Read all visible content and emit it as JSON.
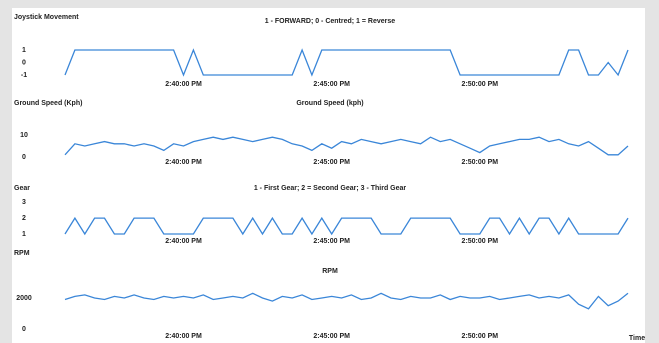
{
  "chart_data": [
    {
      "type": "line",
      "title": "1 - FORWARD; 0 - Centred; 1 = Reverse",
      "y_label": "Joystick Movement",
      "x": [
        52560,
        52580,
        52600,
        52620,
        52640,
        52660,
        52680,
        52700,
        52720,
        52740,
        52760,
        52780,
        52800,
        52820,
        52840,
        52860,
        52880,
        52900,
        52920,
        52940,
        52960,
        52980,
        53000,
        53020,
        53040,
        53060,
        53080,
        53100,
        53120,
        53140,
        53160,
        53180,
        53200,
        53220,
        53240,
        53260,
        53280,
        53300,
        53320,
        53340,
        53360,
        53380,
        53400,
        53420,
        53440,
        53460,
        53480,
        53500,
        53520,
        53540,
        53560,
        53580,
        53600,
        53620,
        53640,
        53660,
        53680,
        53700
      ],
      "series": [
        {
          "color": "#3a86d8",
          "values": [
            -1,
            1,
            1,
            1,
            1,
            1,
            1,
            1,
            1,
            1,
            1,
            1,
            -1,
            1,
            -1,
            -1,
            -1,
            -1,
            -1,
            -1,
            -1,
            -1,
            -1,
            -1,
            1,
            -1,
            1,
            1,
            1,
            1,
            1,
            1,
            1,
            1,
            1,
            1,
            1,
            1,
            1,
            1,
            -1,
            -1,
            -1,
            -1,
            -1,
            -1,
            -1,
            -1,
            -1,
            -1,
            -1,
            1,
            1,
            -1,
            -1,
            0,
            -1,
            1
          ]
        }
      ],
      "xlim": [
        52560,
        53700
      ],
      "ylim": [
        -1.4,
        1.4
      ],
      "yticks": [
        1,
        0,
        -1
      ],
      "xticks": [
        {
          "value": 52800,
          "label": "2:40:00 PM"
        },
        {
          "value": 53100,
          "label": "2:45:00 PM"
        },
        {
          "value": 53400,
          "label": "2:50:00 PM"
        }
      ]
    },
    {
      "type": "line",
      "title": "Ground Speed (kph)",
      "y_label": "Ground Speed (Kph)",
      "x": [
        52560,
        52580,
        52600,
        52620,
        52640,
        52660,
        52680,
        52700,
        52720,
        52740,
        52760,
        52780,
        52800,
        52820,
        52840,
        52860,
        52880,
        52900,
        52920,
        52940,
        52960,
        52980,
        53000,
        53020,
        53040,
        53060,
        53080,
        53100,
        53120,
        53140,
        53160,
        53180,
        53200,
        53220,
        53240,
        53260,
        53280,
        53300,
        53320,
        53340,
        53360,
        53380,
        53400,
        53420,
        53440,
        53460,
        53480,
        53500,
        53520,
        53540,
        53560,
        53580,
        53600,
        53620,
        53640,
        53660,
        53680,
        53700
      ],
      "series": [
        {
          "color": "#3a86d8",
          "values": [
            1,
            6,
            5,
            6,
            7,
            6,
            6,
            5,
            6,
            5,
            3,
            6,
            5,
            7,
            8,
            9,
            8,
            9,
            8,
            7,
            8,
            9,
            8,
            6,
            5,
            3,
            6,
            4,
            7,
            6,
            8,
            7,
            6,
            7,
            8,
            7,
            6,
            9,
            7,
            8,
            6,
            4,
            2,
            5,
            6,
            7,
            8,
            8,
            9,
            7,
            8,
            6,
            5,
            7,
            4,
            1,
            1,
            5
          ]
        }
      ],
      "xlim": [
        52560,
        53700
      ],
      "ylim": [
        -1,
        12
      ],
      "yticks": [
        10,
        0
      ],
      "xticks": [
        {
          "value": 52800,
          "label": "2:40:00 PM"
        },
        {
          "value": 53100,
          "label": "2:45:00 PM"
        },
        {
          "value": 53400,
          "label": "2:50:00 PM"
        }
      ]
    },
    {
      "type": "line",
      "title": "1 - First Gear; 2 = Second Gear; 3 - Third Gear",
      "y_label": "Gear",
      "x": [
        52560,
        52580,
        52600,
        52620,
        52640,
        52660,
        52680,
        52700,
        52720,
        52740,
        52760,
        52780,
        52800,
        52820,
        52840,
        52860,
        52880,
        52900,
        52920,
        52940,
        52960,
        52980,
        53000,
        53020,
        53040,
        53060,
        53080,
        53100,
        53120,
        53140,
        53160,
        53180,
        53200,
        53220,
        53240,
        53260,
        53280,
        53300,
        53320,
        53340,
        53360,
        53380,
        53400,
        53420,
        53440,
        53460,
        53480,
        53500,
        53520,
        53540,
        53560,
        53580,
        53600,
        53620,
        53640,
        53660,
        53680,
        53700
      ],
      "series": [
        {
          "color": "#3a86d8",
          "values": [
            1,
            2,
            1,
            2,
            2,
            1,
            1,
            2,
            2,
            2,
            1,
            1,
            1,
            1,
            2,
            2,
            2,
            2,
            1,
            2,
            1,
            2,
            1,
            1,
            2,
            1,
            2,
            1,
            2,
            2,
            2,
            2,
            1,
            1,
            1,
            2,
            2,
            2,
            2,
            2,
            1,
            1,
            1,
            2,
            2,
            1,
            2,
            1,
            2,
            2,
            1,
            2,
            1,
            1,
            1,
            1,
            1,
            2
          ]
        }
      ],
      "xlim": [
        52560,
        53700
      ],
      "ylim": [
        0.8,
        3.2
      ],
      "yticks": [
        3,
        2,
        1
      ],
      "xticks": [
        {
          "value": 52800,
          "label": "2:40:00 PM"
        },
        {
          "value": 53100,
          "label": "2:45:00 PM"
        },
        {
          "value": 53400,
          "label": "2:50:00 PM"
        }
      ]
    },
    {
      "type": "line",
      "title": "RPM",
      "y_label": "RPM",
      "x_label": "Time",
      "x": [
        52560,
        52580,
        52600,
        52620,
        52640,
        52660,
        52680,
        52700,
        52720,
        52740,
        52760,
        52780,
        52800,
        52820,
        52840,
        52860,
        52880,
        52900,
        52920,
        52940,
        52960,
        52980,
        53000,
        53020,
        53040,
        53060,
        53080,
        53100,
        53120,
        53140,
        53160,
        53180,
        53200,
        53220,
        53240,
        53260,
        53280,
        53300,
        53320,
        53340,
        53360,
        53380,
        53400,
        53420,
        53440,
        53460,
        53480,
        53500,
        53520,
        53540,
        53560,
        53580,
        53600,
        53620,
        53640,
        53660,
        53680,
        53700
      ],
      "series": [
        {
          "color": "#3a86d8",
          "values": [
            1900,
            2100,
            2200,
            2000,
            1900,
            2100,
            2000,
            2200,
            2000,
            1900,
            2100,
            2000,
            2100,
            2000,
            2200,
            1900,
            2000,
            2100,
            2000,
            2300,
            2000,
            1800,
            2100,
            2000,
            2200,
            1900,
            2000,
            2100,
            2000,
            2200,
            1900,
            2000,
            2300,
            2000,
            1900,
            2100,
            2000,
            2000,
            2200,
            1900,
            2100,
            2000,
            2000,
            2100,
            1900,
            2000,
            2100,
            2200,
            2000,
            2100,
            2000,
            2200,
            1600,
            1300,
            2100,
            1500,
            1800,
            2300
          ]
        }
      ],
      "xlim": [
        52560,
        53700
      ],
      "ylim": [
        0,
        2500
      ],
      "yticks": [
        2000,
        0
      ],
      "xticks": [
        {
          "value": 52800,
          "label": "2:40:00 PM"
        },
        {
          "value": 53100,
          "label": "2:45:00 PM"
        },
        {
          "value": 53400,
          "label": "2:50:00 PM"
        }
      ]
    }
  ]
}
